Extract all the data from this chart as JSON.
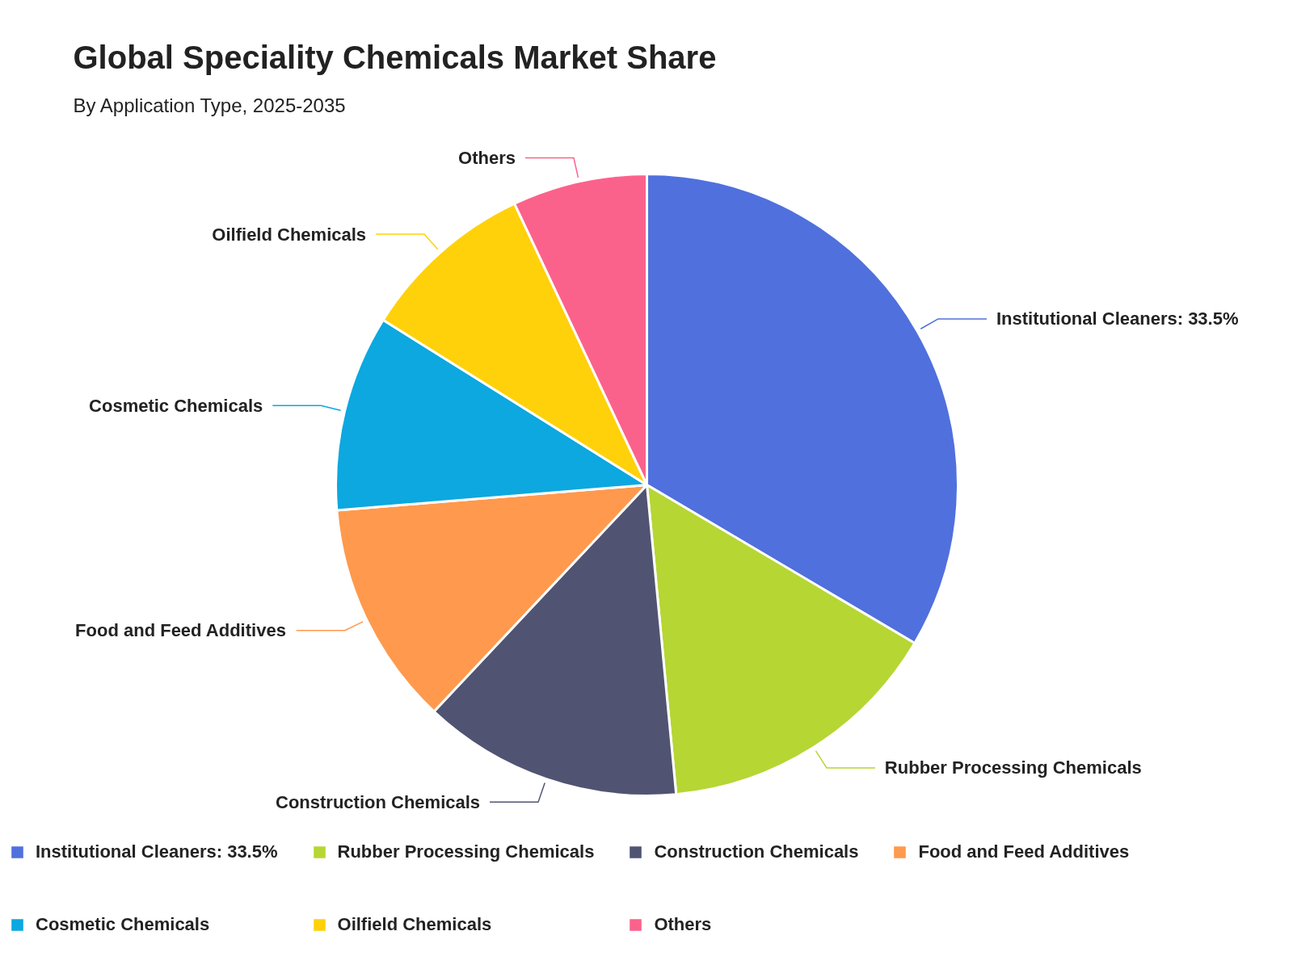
{
  "chart_data": {
    "type": "pie",
    "title": "Global Speciality Chemicals Market Share",
    "subtitle": "By Application Type, 2025-2035",
    "categories": [
      "Institutional Cleaners: 33.5%",
      "Rubber Processing Chemicals",
      "Construction Chemicals",
      "Food and Feed Additives",
      "Cosmetic Chemicals",
      "Oilfield Chemicals",
      "Others"
    ],
    "values": [
      33.5,
      15.0,
      13.5,
      11.7,
      10.2,
      9.1,
      7.0
    ],
    "colors": [
      "#5070dd",
      "#b6d634",
      "#505372",
      "#ff994d",
      "#0ca8df",
      "#ffd10a",
      "#fb628b"
    ],
    "legend": "bottom"
  }
}
